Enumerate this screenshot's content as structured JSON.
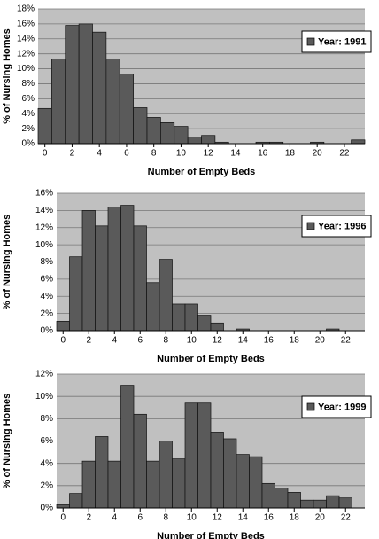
{
  "chart_data": [
    {
      "type": "histogram",
      "xlabel": "Number of Empty Beds",
      "ylabel": "% of Nursing Homes",
      "bins": [
        -0.5,
        0.5,
        1.5,
        2.5,
        3.5,
        4.5,
        5.5,
        6.5,
        7.5,
        8.5,
        9.5,
        10.5,
        11.5,
        12.5,
        13.5,
        14.5,
        15.5,
        16.5,
        17.5,
        18.5,
        19.5,
        20.5,
        21.5,
        22.5,
        23.5
      ],
      "series": [
        {
          "name": "Year: 1991",
          "color": "#5a5a5a",
          "values": [
            4.7,
            11.3,
            15.8,
            16.0,
            14.9,
            11.3,
            9.3,
            4.8,
            3.5,
            2.8,
            2.3,
            0.9,
            1.1,
            0.2,
            0,
            0,
            0.2,
            0.2,
            0,
            0,
            0.2,
            0,
            0,
            0.5
          ]
        }
      ],
      "xlim": [
        -0.5,
        23.5
      ],
      "xticks": [
        0,
        2,
        4,
        6,
        8,
        10,
        12,
        14,
        16,
        18,
        20,
        22
      ],
      "ylim": [
        0,
        18
      ],
      "yticks": [
        {
          "value": 0,
          "label": "0%"
        },
        {
          "value": 2,
          "label": "2%"
        },
        {
          "value": 4,
          "label": "4%"
        },
        {
          "value": 6,
          "label": "6%"
        },
        {
          "value": 8,
          "label": "8%"
        },
        {
          "value": 10,
          "label": "10%"
        },
        {
          "value": 12,
          "label": "12%"
        },
        {
          "value": 14,
          "label": "14%"
        },
        {
          "value": 16,
          "label": "16%"
        },
        {
          "value": 18,
          "label": "18%"
        }
      ],
      "grid": true,
      "legend": "upper right"
    },
    {
      "type": "histogram",
      "xlabel": "Number of Empty Beds",
      "ylabel": "% of Nursing Homes",
      "bins": [
        -0.5,
        0.5,
        1.5,
        2.5,
        3.5,
        4.5,
        5.5,
        6.5,
        7.5,
        8.5,
        9.5,
        10.5,
        11.5,
        12.5,
        13.5,
        14.5,
        15.5,
        16.5,
        17.5,
        18.5,
        19.5,
        20.5,
        21.5,
        22.5,
        23.5
      ],
      "series": [
        {
          "name": "Year: 1996",
          "color": "#5a5a5a",
          "values": [
            1.1,
            8.6,
            14.0,
            12.2,
            14.4,
            14.6,
            12.2,
            5.6,
            8.3,
            3.1,
            3.1,
            1.8,
            0.9,
            0,
            0.2,
            0,
            0,
            0,
            0,
            0,
            0,
            0.2,
            0,
            0
          ]
        }
      ],
      "xlim": [
        -0.5,
        23.5
      ],
      "xticks": [
        0,
        2,
        4,
        6,
        8,
        10,
        12,
        14,
        16,
        18,
        20,
        22
      ],
      "ylim": [
        0,
        16
      ],
      "yticks": [
        {
          "value": 0,
          "label": "0%"
        },
        {
          "value": 2,
          "label": "2%"
        },
        {
          "value": 4,
          "label": "4%"
        },
        {
          "value": 6,
          "label": "6%"
        },
        {
          "value": 8,
          "label": "8%"
        },
        {
          "value": 10,
          "label": "10%"
        },
        {
          "value": 12,
          "label": "12%"
        },
        {
          "value": 14,
          "label": "14%"
        },
        {
          "value": 16,
          "label": "16%"
        }
      ],
      "grid": true,
      "legend": "upper right"
    },
    {
      "type": "histogram",
      "xlabel": "Number of Empty Beds",
      "ylabel": "% of Nursing Homes",
      "bins": [
        -0.5,
        0.5,
        1.5,
        2.5,
        3.5,
        4.5,
        5.5,
        6.5,
        7.5,
        8.5,
        9.5,
        10.5,
        11.5,
        12.5,
        13.5,
        14.5,
        15.5,
        16.5,
        17.5,
        18.5,
        19.5,
        20.5,
        21.5,
        22.5,
        23.5
      ],
      "series": [
        {
          "name": "Year: 1999",
          "color": "#5a5a5a",
          "values": [
            0.3,
            1.3,
            4.2,
            6.4,
            4.2,
            11.0,
            8.4,
            4.2,
            6.0,
            4.4,
            9.4,
            9.4,
            6.8,
            6.2,
            4.8,
            4.6,
            2.2,
            1.8,
            1.4,
            0.7,
            0.7,
            1.1,
            0.9,
            0
          ]
        }
      ],
      "xlim": [
        -0.5,
        23.5
      ],
      "xticks": [
        0,
        2,
        4,
        6,
        8,
        10,
        12,
        14,
        16,
        18,
        20,
        22
      ],
      "ylim": [
        0,
        12
      ],
      "yticks": [
        {
          "value": 0,
          "label": "0%"
        },
        {
          "value": 2,
          "label": "2%"
        },
        {
          "value": 4,
          "label": "4%"
        },
        {
          "value": 6,
          "label": "6%"
        },
        {
          "value": 8,
          "label": "8%"
        },
        {
          "value": 10,
          "label": "10%"
        },
        {
          "value": 12,
          "label": "12%"
        }
      ],
      "grid": true,
      "legend": "upper right"
    }
  ]
}
